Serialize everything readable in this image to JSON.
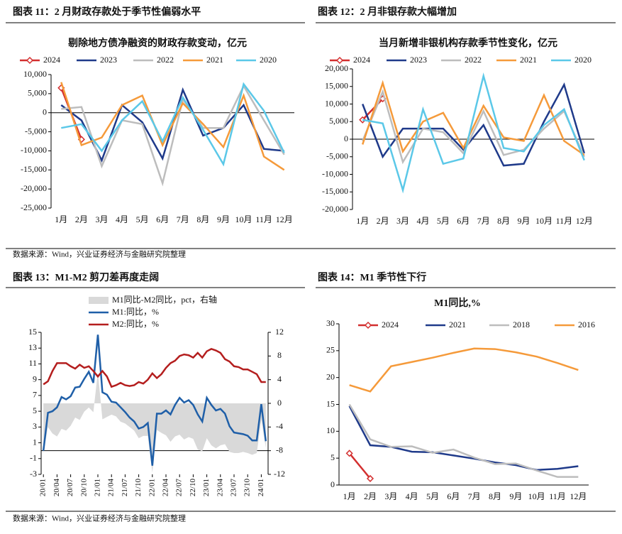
{
  "chart_data": [
    {
      "type": "line",
      "figure_title": "图表 11：2 月财政存款处于季节性偏弱水平",
      "title": "剔除地方债净融资的财政存款变动，亿元",
      "categories": [
        "1月",
        "2月",
        "3月",
        "4月",
        "5月",
        "6月",
        "7月",
        "8月",
        "9月",
        "10月",
        "11月",
        "12月"
      ],
      "ylim": [
        -25000,
        10000
      ],
      "yticks": [
        {
          "value": 10000,
          "label": "10,000"
        },
        {
          "value": 5000,
          "label": "5,000"
        },
        0,
        {
          "value": -5000,
          "label": "-5,000"
        },
        {
          "value": -10000,
          "label": "-10,000"
        },
        {
          "value": -15000,
          "label": "-15,000"
        },
        {
          "value": -20000,
          "label": "-20,000"
        },
        {
          "value": -25000,
          "label": "-25,000"
        }
      ],
      "series": [
        {
          "name": "2024",
          "color": "#d32f2f",
          "marker": "diamond",
          "values": [
            6500,
            -7000,
            null,
            null,
            null,
            null,
            null,
            null,
            null,
            null,
            null,
            null
          ]
        },
        {
          "name": "2023",
          "color": "#1f3a8a",
          "values": [
            2000,
            -2000,
            -12500,
            2000,
            -2500,
            -12000,
            6000,
            -6000,
            -4000,
            2000,
            -9500,
            -10000
          ]
        },
        {
          "name": "2022",
          "color": "#bdbdbd",
          "values": [
            1000,
            1500,
            -14000,
            -2000,
            -3000,
            -18500,
            3500,
            -4000,
            -4000,
            7000,
            -2000,
            -11000
          ]
        },
        {
          "name": "2021",
          "color": "#f59a3a",
          "values": [
            8000,
            -8500,
            -6500,
            2000,
            4500,
            -8500,
            2500,
            -3000,
            -9000,
            4500,
            -11500,
            -15000
          ]
        },
        {
          "name": "2020",
          "color": "#5bc8e8",
          "values": [
            -4000,
            -3000,
            -10000,
            -2000,
            3000,
            -7500,
            4000,
            -4500,
            -13500,
            7500,
            500,
            -10500
          ]
        }
      ]
    },
    {
      "type": "line",
      "figure_title": "图表 12：2 月非银存款大幅增加",
      "title": "当月新增非银机构存款季节性变化，亿元",
      "categories": [
        "1月",
        "2月",
        "3月",
        "4月",
        "5月",
        "6月",
        "7月",
        "8月",
        "9月",
        "10月",
        "11月",
        "12月"
      ],
      "ylim": [
        -20000,
        20000
      ],
      "yticks": [
        {
          "value": 20000,
          "label": "20,000"
        },
        {
          "value": 15000,
          "label": "15,000"
        },
        {
          "value": 10000,
          "label": "10,000"
        },
        {
          "value": 5000,
          "label": "5,000"
        },
        0,
        {
          "value": -5000,
          "label": "-5,000"
        },
        {
          "value": -10000,
          "label": "-10,000"
        },
        {
          "value": -15000,
          "label": "-15,000"
        },
        {
          "value": -20000,
          "label": "-20,000"
        }
      ],
      "series": [
        {
          "name": "2024",
          "color": "#d32f2f",
          "marker": "diamond",
          "values": [
            5500,
            11500,
            null,
            null,
            null,
            null,
            null,
            null,
            null,
            null,
            null,
            null
          ]
        },
        {
          "name": "2023",
          "color": "#1f3a8a",
          "values": [
            10000,
            -5000,
            3000,
            3000,
            3000,
            -3000,
            4000,
            -7500,
            -7000,
            5000,
            15500,
            -4000
          ]
        },
        {
          "name": "2022",
          "color": "#bdbdbd",
          "values": [
            -500,
            13500,
            -6500,
            3000,
            2000,
            -4000,
            8000,
            -4500,
            -3000,
            3000,
            8000,
            -5000
          ]
        },
        {
          "name": "2021",
          "color": "#f59a3a",
          "values": [
            -1500,
            16000,
            -3500,
            5000,
            7500,
            -2500,
            9500,
            500,
            -500,
            12500,
            -500,
            -4500
          ]
        },
        {
          "name": "2020",
          "color": "#5bc8e8",
          "values": [
            5500,
            4500,
            -14500,
            8500,
            -7000,
            -5500,
            18000,
            -2500,
            -3500,
            4000,
            8500,
            -6000
          ]
        }
      ]
    },
    {
      "type": "line",
      "figure_title": "图表 13：M1-M2 剪刀差再度走阔",
      "categories": [
        "20/01",
        null,
        null,
        "20/04",
        null,
        null,
        "20/07",
        null,
        null,
        "20/10",
        null,
        null,
        "21/01",
        null,
        null,
        "21/04",
        null,
        null,
        "21/07",
        null,
        null,
        "21/10",
        null,
        null,
        "22/01",
        null,
        null,
        "22/04",
        null,
        null,
        "22/07",
        null,
        null,
        "22/10",
        null,
        null,
        "23/01",
        null,
        null,
        "23/04",
        null,
        null,
        "23/07",
        null,
        null,
        "23/10",
        null,
        null,
        "24/01",
        null
      ],
      "ylim": [
        -3,
        15
      ],
      "yticks": [
        15,
        13,
        11,
        9,
        7,
        5,
        3,
        1,
        -1,
        -3
      ],
      "y2lim": [
        -12,
        12
      ],
      "y2ticks": [
        12,
        8,
        4,
        0,
        -4,
        -8,
        -12
      ],
      "series": [
        {
          "name": "M1同比-M2同比，pct，右轴",
          "color": "#d9d9d9",
          "axis": "y2",
          "style": "area",
          "values": [
            -8.4,
            -4.0,
            -5.1,
            -5.6,
            -4.3,
            -4.6,
            -3.8,
            -2.4,
            -2.8,
            -1.4,
            -0.7,
            -1.5,
            5.3,
            -2.7,
            -2.3,
            -1.9,
            -2.2,
            -3.1,
            -3.4,
            -4.0,
            -4.6,
            -5.9,
            -5.5,
            -5.5,
            -11.7,
            -4.5,
            -5.0,
            -5.4,
            -6.5,
            -5.6,
            -5.3,
            -6.1,
            -5.7,
            -6.0,
            -7.8,
            -8.1,
            -5.9,
            -7.1,
            -7.6,
            -7.1,
            -6.9,
            -8.2,
            -8.4,
            -8.4,
            -8.2,
            -8.4,
            -8.7,
            -8.4,
            -2.8,
            -7.5
          ]
        },
        {
          "name": "M1:同比，%",
          "color": "#1f5fa8",
          "values": [
            0.0,
            4.8,
            5.0,
            5.5,
            6.8,
            6.5,
            6.9,
            8.0,
            8.1,
            9.1,
            10.0,
            8.6,
            14.7,
            7.4,
            7.1,
            6.2,
            6.1,
            5.5,
            4.9,
            4.2,
            3.7,
            2.8,
            3.0,
            3.5,
            -1.9,
            4.7,
            4.7,
            5.1,
            4.6,
            5.8,
            6.7,
            6.1,
            6.4,
            5.8,
            4.6,
            3.7,
            6.7,
            5.8,
            5.1,
            5.3,
            4.7,
            3.1,
            2.3,
            2.2,
            2.1,
            1.9,
            1.3,
            1.3,
            5.9,
            1.2
          ]
        },
        {
          "name": "M2:同比，%",
          "color": "#b41e1e",
          "values": [
            8.4,
            8.8,
            10.1,
            11.1,
            11.1,
            11.1,
            10.7,
            10.4,
            10.9,
            10.5,
            10.7,
            10.1,
            9.4,
            10.1,
            9.4,
            8.1,
            8.3,
            8.6,
            8.3,
            8.2,
            8.3,
            8.7,
            8.5,
            9.0,
            9.8,
            9.2,
            9.7,
            10.5,
            11.1,
            11.4,
            12.0,
            12.2,
            12.1,
            11.8,
            12.4,
            11.8,
            12.6,
            12.9,
            12.7,
            12.4,
            11.6,
            11.3,
            10.7,
            10.6,
            10.3,
            10.3,
            10.0,
            9.7,
            8.7,
            8.7
          ]
        }
      ]
    },
    {
      "type": "line",
      "figure_title": "图表 14：M1 季节性下行",
      "title": "M1同比,%",
      "categories": [
        "1月",
        "2月",
        "3月",
        "4月",
        "5月",
        "6月",
        "7月",
        "8月",
        "9月",
        "10月",
        "11月",
        "12月"
      ],
      "ylim": [
        0,
        30
      ],
      "yticks": [
        30,
        25,
        20,
        15,
        10,
        5,
        0
      ],
      "series": [
        {
          "name": "2024",
          "color": "#d32f2f",
          "marker": "diamond",
          "values": [
            5.9,
            1.2,
            null,
            null,
            null,
            null,
            null,
            null,
            null,
            null,
            null,
            null
          ]
        },
        {
          "name": "2021",
          "color": "#1f3a8a",
          "values": [
            14.7,
            7.4,
            7.1,
            6.2,
            6.1,
            5.5,
            4.9,
            4.2,
            3.7,
            2.8,
            3.0,
            3.5
          ]
        },
        {
          "name": "2018",
          "color": "#bdbdbd",
          "values": [
            15.0,
            8.5,
            7.1,
            7.2,
            6.0,
            6.6,
            5.1,
            3.9,
            4.0,
            2.7,
            1.5,
            1.5
          ]
        },
        {
          "name": "2016",
          "color": "#f59a3a",
          "values": [
            18.6,
            17.4,
            22.1,
            22.9,
            23.7,
            24.6,
            25.4,
            25.3,
            24.7,
            23.9,
            22.7,
            21.4
          ]
        }
      ]
    }
  ],
  "sources": [
    "数据来源：Wind，兴业证券经济与金融研究院整理",
    "数据来源：Wind，兴业证券经济与金融研究院整理"
  ]
}
